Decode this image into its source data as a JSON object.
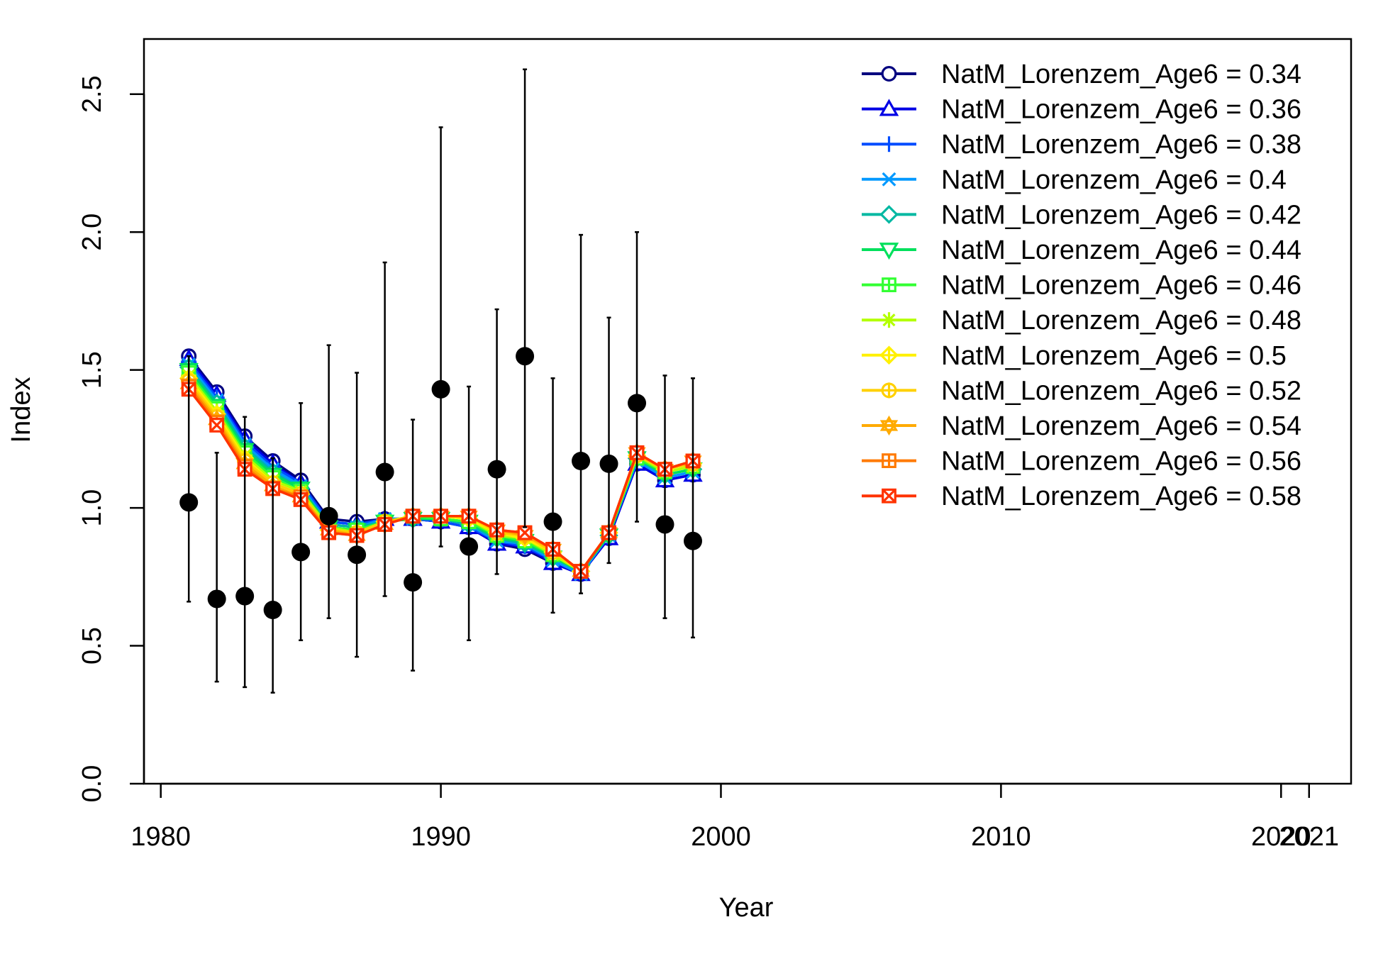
{
  "chart_data": {
    "type": "line",
    "xlabel": "Year",
    "ylabel": "Index",
    "xlim": [
      1979.4,
      2022.5
    ],
    "ylim": [
      0,
      2.7
    ],
    "x_ticks": [
      1980,
      1990,
      2000,
      2010,
      2020,
      2021
    ],
    "y_ticks": [
      0.0,
      0.5,
      1.0,
      1.5,
      2.0,
      2.5
    ],
    "y_tick_labels": [
      "0.0",
      "0.5",
      "1.0",
      "1.5",
      "2.0",
      "2.5"
    ],
    "legend_position": "top-right",
    "observed": {
      "x": [
        1981,
        1982,
        1983,
        1984,
        1985,
        1986,
        1987,
        1988,
        1989,
        1990,
        1991,
        1992,
        1993,
        1994,
        1995,
        1996,
        1997,
        1998,
        1999
      ],
      "y": [
        1.02,
        0.67,
        0.68,
        0.63,
        0.84,
        0.97,
        0.83,
        1.13,
        0.73,
        1.43,
        0.86,
        1.14,
        1.55,
        0.95,
        1.17,
        1.16,
        1.38,
        0.94,
        0.88
      ],
      "lower": [
        0.66,
        0.37,
        0.35,
        0.33,
        0.52,
        0.6,
        0.46,
        0.68,
        0.41,
        0.86,
        0.52,
        0.76,
        0.93,
        0.62,
        0.69,
        0.8,
        0.95,
        0.6,
        0.53
      ],
      "upper": [
        1.55,
        1.2,
        1.33,
        1.18,
        1.38,
        1.59,
        1.49,
        1.89,
        1.32,
        2.38,
        1.44,
        1.72,
        2.59,
        1.47,
        1.99,
        1.69,
        2.0,
        1.48,
        1.47
      ]
    },
    "x": [
      1981,
      1982,
      1983,
      1984,
      1985,
      1986,
      1987,
      1988,
      1989,
      1990,
      1991,
      1992,
      1993,
      1994,
      1995,
      1996,
      1997,
      1998,
      1999
    ],
    "series": [
      {
        "name": "NatM_Lorenzem_Age6 = 0.34",
        "color": "#00007F",
        "marker": "circle-open",
        "values": [
          1.55,
          1.42,
          1.26,
          1.17,
          1.1,
          0.96,
          0.95,
          0.96,
          0.96,
          0.95,
          0.93,
          0.87,
          0.85,
          0.8,
          0.76,
          0.89,
          1.16,
          1.1,
          1.12
        ]
      },
      {
        "name": "NatM_Lorenzem_Age6 = 0.36",
        "color": "#0000E5",
        "marker": "triangle-open",
        "values": [
          1.54,
          1.41,
          1.25,
          1.16,
          1.09,
          0.95,
          0.94,
          0.96,
          0.96,
          0.95,
          0.93,
          0.87,
          0.86,
          0.8,
          0.76,
          0.89,
          1.16,
          1.1,
          1.12
        ]
      },
      {
        "name": "NatM_Lorenzem_Age6 = 0.38",
        "color": "#004CFF",
        "marker": "plus",
        "values": [
          1.53,
          1.4,
          1.24,
          1.15,
          1.09,
          0.95,
          0.94,
          0.96,
          0.96,
          0.95,
          0.93,
          0.88,
          0.86,
          0.81,
          0.76,
          0.9,
          1.17,
          1.11,
          1.13
        ]
      },
      {
        "name": "NatM_Lorenzem_Age6 = 0.4",
        "color": "#0099FF",
        "marker": "cross",
        "values": [
          1.52,
          1.39,
          1.23,
          1.14,
          1.08,
          0.94,
          0.93,
          0.96,
          0.96,
          0.96,
          0.94,
          0.88,
          0.87,
          0.81,
          0.76,
          0.9,
          1.17,
          1.11,
          1.13
        ]
      },
      {
        "name": "NatM_Lorenzem_Age6 = 0.42",
        "color": "#00B8A2",
        "marker": "diamond-open",
        "values": [
          1.51,
          1.38,
          1.22,
          1.13,
          1.07,
          0.94,
          0.93,
          0.95,
          0.96,
          0.96,
          0.94,
          0.89,
          0.87,
          0.82,
          0.77,
          0.9,
          1.18,
          1.12,
          1.14
        ]
      },
      {
        "name": "NatM_Lorenzem_Age6 = 0.44",
        "color": "#00E05C",
        "marker": "triangle-down-open",
        "values": [
          1.5,
          1.37,
          1.21,
          1.12,
          1.07,
          0.93,
          0.92,
          0.95,
          0.96,
          0.96,
          0.95,
          0.89,
          0.88,
          0.82,
          0.77,
          0.9,
          1.18,
          1.12,
          1.14
        ]
      },
      {
        "name": "NatM_Lorenzem_Age6 = 0.46",
        "color": "#33FF33",
        "marker": "square-plus",
        "values": [
          1.49,
          1.36,
          1.2,
          1.11,
          1.06,
          0.93,
          0.92,
          0.95,
          0.97,
          0.96,
          0.95,
          0.9,
          0.88,
          0.83,
          0.77,
          0.91,
          1.18,
          1.13,
          1.15
        ]
      },
      {
        "name": "NatM_Lorenzem_Age6 = 0.48",
        "color": "#B3FF00",
        "marker": "asterisk",
        "values": [
          1.48,
          1.35,
          1.19,
          1.1,
          1.06,
          0.93,
          0.91,
          0.95,
          0.97,
          0.97,
          0.96,
          0.9,
          0.89,
          0.83,
          0.77,
          0.91,
          1.19,
          1.13,
          1.15
        ]
      },
      {
        "name": "NatM_Lorenzem_Age6 = 0.5",
        "color": "#FFF000",
        "marker": "diamond-plus",
        "values": [
          1.47,
          1.34,
          1.18,
          1.09,
          1.05,
          0.92,
          0.91,
          0.95,
          0.97,
          0.97,
          0.96,
          0.91,
          0.89,
          0.84,
          0.77,
          0.91,
          1.19,
          1.14,
          1.16
        ]
      },
      {
        "name": "NatM_Lorenzem_Age6 = 0.52",
        "color": "#FFD000",
        "marker": "circle-plus",
        "values": [
          1.46,
          1.33,
          1.17,
          1.09,
          1.05,
          0.92,
          0.91,
          0.95,
          0.97,
          0.97,
          0.97,
          0.91,
          0.9,
          0.84,
          0.77,
          0.91,
          1.19,
          1.14,
          1.16
        ]
      },
      {
        "name": "NatM_Lorenzem_Age6 = 0.54",
        "color": "#FFAA00",
        "marker": "star",
        "values": [
          1.45,
          1.32,
          1.16,
          1.08,
          1.04,
          0.92,
          0.9,
          0.94,
          0.97,
          0.97,
          0.97,
          0.92,
          0.9,
          0.85,
          0.77,
          0.91,
          1.2,
          1.14,
          1.17
        ]
      },
      {
        "name": "NatM_Lorenzem_Age6 = 0.56",
        "color": "#FF7A00",
        "marker": "square-plus",
        "values": [
          1.44,
          1.31,
          1.15,
          1.07,
          1.04,
          0.91,
          0.9,
          0.94,
          0.97,
          0.97,
          0.97,
          0.92,
          0.91,
          0.85,
          0.77,
          0.91,
          1.2,
          1.14,
          1.17
        ]
      },
      {
        "name": "NatM_Lorenzem_Age6 = 0.58",
        "color": "#FF3300",
        "marker": "square-cross",
        "values": [
          1.43,
          1.3,
          1.14,
          1.07,
          1.03,
          0.91,
          0.9,
          0.94,
          0.97,
          0.97,
          0.97,
          0.92,
          0.91,
          0.85,
          0.77,
          0.91,
          1.2,
          1.14,
          1.17
        ]
      }
    ]
  }
}
